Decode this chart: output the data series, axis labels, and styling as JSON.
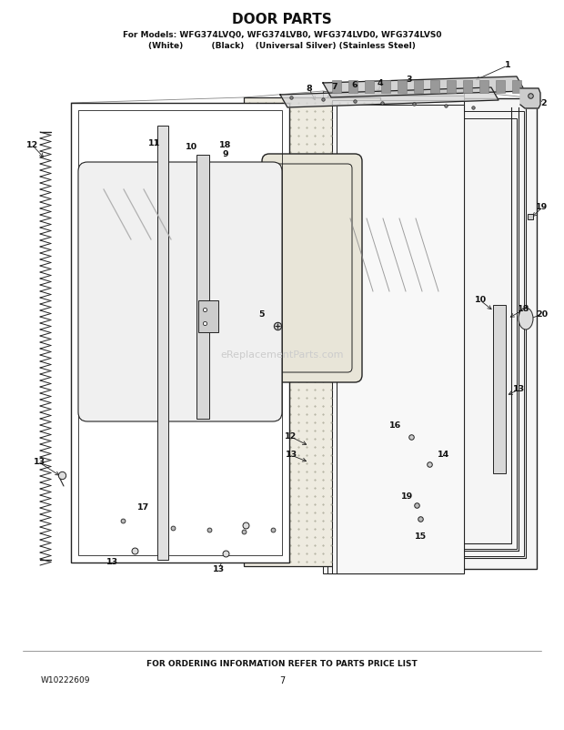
{
  "title": "DOOR PARTS",
  "subtitle1": "For Models: WFG374LVQ0, WFG374LVB0, WFG374LVD0, WFG374LVS0",
  "subtitle2": "(White)          (Black)    (Universal Silver) (Stainless Steel)",
  "footer_center": "FOR ORDERING INFORMATION REFER TO PARTS PRICE LIST",
  "footer_left": "W10222609",
  "footer_page": "7",
  "watermark": "eReplacementParts.com",
  "bg_color": "#ffffff",
  "lc": "#222222"
}
